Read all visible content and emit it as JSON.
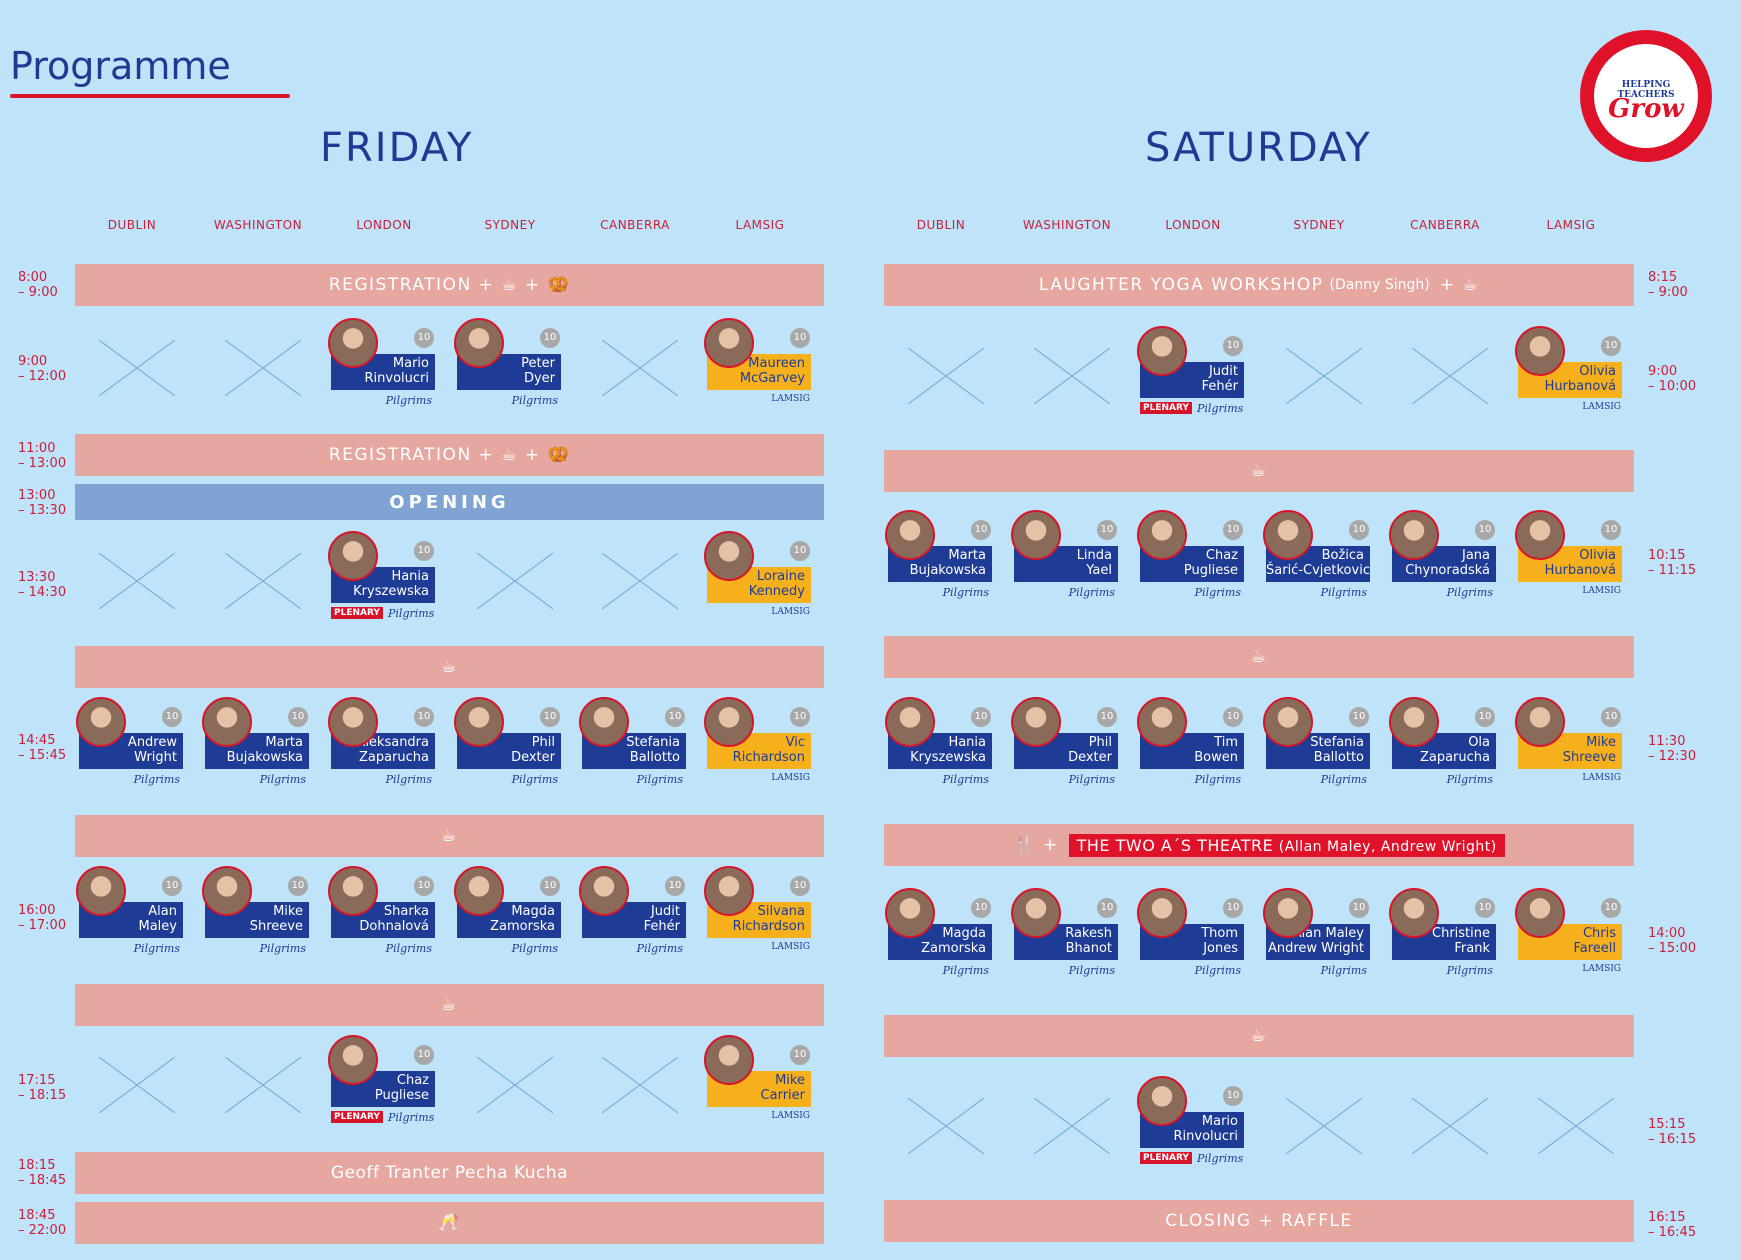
{
  "title": "Programme",
  "logo": {
    "line1": "HELPING TEACHERS",
    "line2": "Grow"
  },
  "friday": {
    "day": "FRIDAY",
    "columns": [
      "DUBLIN",
      "WASHINGTON",
      "LONDON",
      "SYDNEY",
      "CANBERRA",
      "LAMSIG"
    ],
    "times": [
      "8:00\n– 9:00",
      "9:00\n– 12:00",
      "11:00\n– 13:00",
      "13:00\n– 13:30",
      "13:30\n– 14:30",
      "14:45\n– 15:45",
      "16:00\n– 17:00",
      "17:15\n– 18:15",
      "18:15\n– 18:45",
      "18:45\n– 22:00"
    ],
    "bands": {
      "registration": "REGISTRATION + ☕ + 🥨",
      "registration2": "REGISTRATION + ☕ + 🥨",
      "opening": "OPENING",
      "coffee": "☕",
      "pecha": "Geoff Tranter Pecha Kucha",
      "party": "🥂"
    },
    "sessions": {
      "s1": [
        {
          "name": "Mario\nRinvolucri",
          "badge": "10",
          "sub": "Pilgrims",
          "col": 2
        },
        {
          "name": "Peter\nDyer",
          "badge": "10",
          "sub": "Pilgrims",
          "col": 3
        },
        {
          "name": "Maureen\nMcGarvey",
          "badge": "10",
          "sub": "LAMSIG",
          "col": 5
        }
      ],
      "s2": [
        {
          "name": "Hania\nKryszewska",
          "badge": "10",
          "sub": "Pilgrims",
          "plenary": "PLENARY",
          "col": 2
        },
        {
          "name": "Loraine\nKennedy",
          "badge": "10",
          "sub": "LAMSIG",
          "col": 5
        }
      ],
      "s3": [
        {
          "name": "Andrew\nWright",
          "badge": "10",
          "sub": "Pilgrims",
          "col": 0
        },
        {
          "name": "Marta\nBujakowska",
          "badge": "10",
          "sub": "Pilgrims",
          "col": 1
        },
        {
          "name": "Aleksandra\nZaparucha",
          "badge": "10",
          "sub": "Pilgrims",
          "col": 2
        },
        {
          "name": "Phil\nDexter",
          "badge": "10",
          "sub": "Pilgrims",
          "col": 3
        },
        {
          "name": "Stefania\nBallotto",
          "badge": "10",
          "sub": "Pilgrims",
          "col": 4
        },
        {
          "name": "Vic\nRichardson",
          "badge": "10",
          "sub": "LAMSIG",
          "col": 5
        }
      ],
      "s4": [
        {
          "name": "Alan\nMaley",
          "badge": "10",
          "sub": "Pilgrims",
          "col": 0
        },
        {
          "name": "Mike\nShreeve",
          "badge": "10",
          "sub": "Pilgrims",
          "col": 1
        },
        {
          "name": "Sharka\nDohnalová",
          "badge": "10",
          "sub": "Pilgrims",
          "col": 2
        },
        {
          "name": "Magda\nZamorska",
          "badge": "10",
          "sub": "Pilgrims",
          "col": 3
        },
        {
          "name": "Judit\nFehér",
          "badge": "10",
          "sub": "Pilgrims",
          "col": 4
        },
        {
          "name": "Silvana\nRichardson",
          "badge": "10",
          "sub": "LAMSIG",
          "col": 5
        }
      ],
      "s5": [
        {
          "name": "Chaz\nPugliese",
          "badge": "10",
          "sub": "Pilgrims",
          "plenary": "PLENARY",
          "col": 2
        },
        {
          "name": "Mike\nCarrier",
          "badge": "10",
          "sub": "LAMSIG",
          "col": 5
        }
      ]
    }
  },
  "saturday": {
    "day": "SATURDAY",
    "columns": [
      "DUBLIN",
      "WASHINGTON",
      "LONDON",
      "SYDNEY",
      "CANBERRA",
      "LAMSIG"
    ],
    "times": [
      "8:15\n– 9:00",
      "9:00\n– 10:00",
      "10:15\n– 11:15",
      "11:30\n– 12:30",
      "14:00\n– 15:00",
      "15:15\n– 16:15",
      "16:15\n– 16:45"
    ],
    "bands": {
      "yoga": "LAUGHTER YOGA WORKSHOP",
      "yoga_sub": "(Danny Singh)",
      "yoga_tail": "+ ☕",
      "coffee": "☕",
      "lunch": "🍴 +",
      "theatre": "THE TWO A´S THEATRE",
      "theatre_sub": "(Allan Maley, Andrew Wright)",
      "closing": "CLOSING + RAFFLE"
    },
    "sessions": {
      "s1": [
        {
          "name": "Judit\nFehér",
          "badge": "10",
          "sub": "Pilgrims",
          "plenary": "PLENARY",
          "col": 2
        },
        {
          "name": "Olivia\nHurbanová",
          "badge": "10",
          "sub": "LAMSIG",
          "col": 5
        }
      ],
      "s2": [
        {
          "name": "Marta\nBujakowska",
          "badge": "10",
          "sub": "Pilgrims",
          "col": 0
        },
        {
          "name": "Linda\nYael",
          "badge": "10",
          "sub": "Pilgrims",
          "col": 1
        },
        {
          "name": "Chaz\nPugliese",
          "badge": "10",
          "sub": "Pilgrims",
          "col": 2
        },
        {
          "name": "Božica\nŠarić-Cvjetkovic",
          "badge": "10",
          "sub": "Pilgrims",
          "col": 3
        },
        {
          "name": "Jana\nChynoradská",
          "badge": "10",
          "sub": "Pilgrims",
          "col": 4
        },
        {
          "name": "Olivia\nHurbanová",
          "badge": "10",
          "sub": "LAMSIG",
          "col": 5
        }
      ],
      "s3": [
        {
          "name": "Hania\nKryszewska",
          "badge": "10",
          "sub": "Pilgrims",
          "col": 0
        },
        {
          "name": "Phil\nDexter",
          "badge": "10",
          "sub": "Pilgrims",
          "col": 1
        },
        {
          "name": "Tim\nBowen",
          "badge": "10",
          "sub": "Pilgrims",
          "col": 2
        },
        {
          "name": "Stefania\nBallotto",
          "badge": "10",
          "sub": "Pilgrims",
          "col": 3
        },
        {
          "name": "Ola\nZaparucha",
          "badge": "10",
          "sub": "Pilgrims",
          "col": 4
        },
        {
          "name": "Mike\nShreeve",
          "badge": "10",
          "sub": "LAMSIG",
          "col": 5
        }
      ],
      "s4": [
        {
          "name": "Magda\nZamorska",
          "badge": "10",
          "sub": "Pilgrims",
          "col": 0
        },
        {
          "name": "Rakesh\nBhanot",
          "badge": "10",
          "sub": "Pilgrims",
          "col": 1
        },
        {
          "name": "Thom\nJones",
          "badge": "10",
          "sub": "Pilgrims",
          "col": 2
        },
        {
          "name": "Alan Maley\nAndrew Wright",
          "badge": "10",
          "sub": "Pilgrims",
          "col": 3
        },
        {
          "name": "Christine\nFrank",
          "badge": "10",
          "sub": "Pilgrims",
          "col": 4
        },
        {
          "name": "Chris\nFareell",
          "badge": "10",
          "sub": "LAMSIG",
          "col": 5
        }
      ],
      "s5": [
        {
          "name": "Mario\nRinvolucri",
          "badge": "10",
          "sub": "Pilgrims",
          "plenary": "PLENARY",
          "col": 2
        }
      ]
    }
  }
}
